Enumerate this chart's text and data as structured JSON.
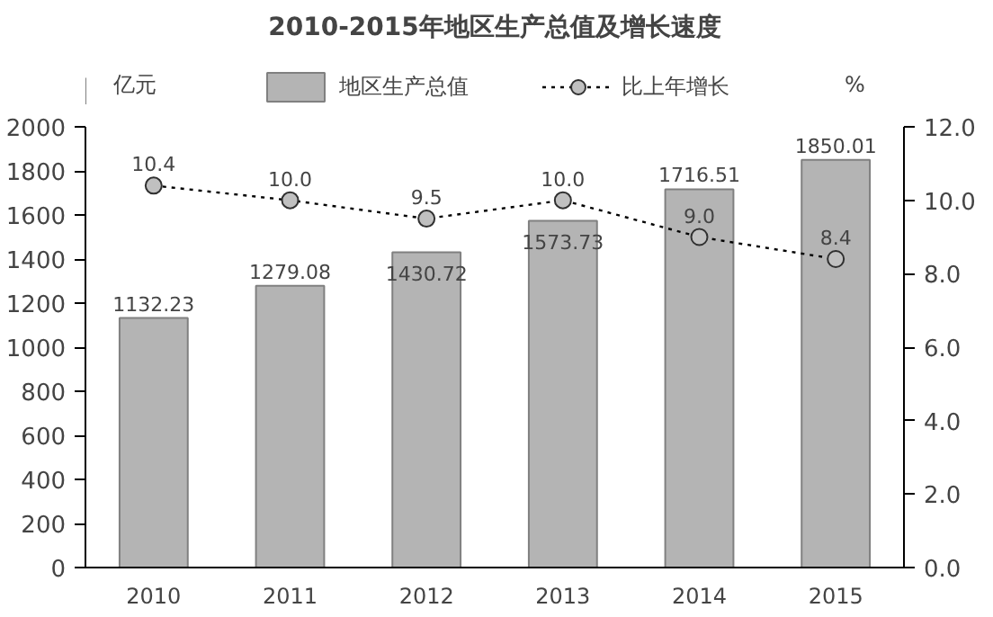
{
  "chart_data": {
    "type": "bar",
    "title": "2010-2015年地区生产总值及增长速度",
    "categories": [
      "2010",
      "2011",
      "2012",
      "2013",
      "2014",
      "2015"
    ],
    "series": [
      {
        "name": "地区生产总值",
        "color": "#b4b4b4",
        "values": [
          1132.23,
          1279.08,
          1430.72,
          1573.73,
          1716.51,
          1850.01
        ],
        "value_labels": [
          "1132.23",
          "1279.08",
          "1430.72",
          "1573.73",
          "1716.51",
          "1850.01"
        ]
      },
      {
        "name": "比上年增长",
        "type": "line",
        "axis": "y2",
        "color": "#000000",
        "marker": "circle",
        "line_style": "dotted",
        "values": [
          10.4,
          10.0,
          9.5,
          10.0,
          9.0,
          8.4
        ],
        "value_labels": [
          "10.4",
          "10.0",
          "9.5",
          "10.0",
          "9.0",
          "8.4"
        ]
      }
    ],
    "ylabel": "亿元",
    "y2label": "%",
    "ylim": [
      0,
      2000
    ],
    "yticks": [
      0,
      200,
      400,
      600,
      800,
      1000,
      1200,
      1400,
      1600,
      1800,
      2000
    ],
    "y2lim": [
      0,
      12
    ],
    "y2ticks": [
      {
        "value": 0,
        "label": "0.0"
      },
      {
        "value": 2,
        "label": "2.0"
      },
      {
        "value": 4,
        "label": "4.0"
      },
      {
        "value": 6,
        "label": "6.0"
      },
      {
        "value": 8,
        "label": "8.0"
      },
      {
        "value": 10,
        "label": "10.0"
      },
      {
        "value": 12,
        "label": "12.0"
      }
    ],
    "grid": false,
    "legend": "top"
  }
}
